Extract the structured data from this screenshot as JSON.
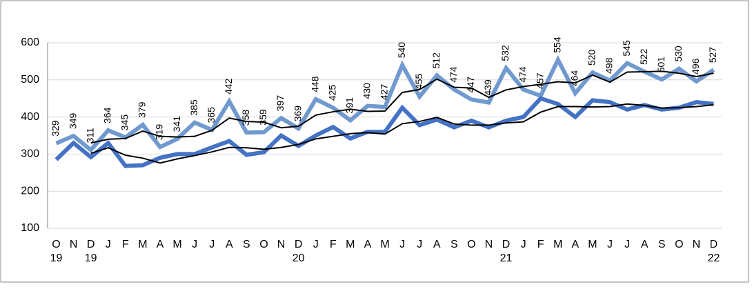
{
  "chart_data": {
    "type": "line",
    "categories": [
      "O",
      "N",
      "D",
      "J",
      "F",
      "M",
      "A",
      "M",
      "J",
      "J",
      "A",
      "S",
      "O",
      "N",
      "D",
      "J",
      "F",
      "M",
      "A",
      "M",
      "J",
      "J",
      "A",
      "S",
      "O",
      "N",
      "D",
      "J",
      "F",
      "M",
      "A",
      "M",
      "J",
      "J",
      "A",
      "S",
      "O",
      "N",
      "D"
    ],
    "category_years": [
      "19",
      null,
      "19",
      null,
      null,
      null,
      null,
      null,
      null,
      null,
      null,
      null,
      null,
      null,
      "20",
      null,
      null,
      null,
      null,
      null,
      null,
      null,
      null,
      null,
      null,
      null,
      "21",
      null,
      null,
      null,
      null,
      null,
      null,
      null,
      null,
      null,
      null,
      null,
      "22"
    ],
    "ylim": [
      100,
      600
    ],
    "yticks": [
      100,
      200,
      300,
      400,
      500,
      600
    ],
    "grid": true,
    "series": [
      {
        "color": "#7099cf",
        "width": 6,
        "data_labels": true,
        "values": [
          329,
          349,
          311,
          364,
          345,
          379,
          319,
          341,
          385,
          365,
          442,
          358,
          359,
          397,
          369,
          448,
          425,
          391,
          430,
          427,
          540,
          455,
          512,
          474,
          447,
          439,
          532,
          474,
          457,
          554,
          464,
          520,
          498,
          545,
          522,
          501,
          530,
          496,
          527
        ]
      },
      {
        "color": "#4472c4",
        "width": 6,
        "data_labels": false,
        "values": [
          285,
          330,
          292,
          330,
          268,
          270,
          290,
          300,
          300,
          318,
          335,
          298,
          305,
          350,
          322,
          350,
          373,
          342,
          360,
          360,
          425,
          378,
          393,
          372,
          390,
          372,
          390,
          400,
          450,
          435,
          400,
          445,
          440,
          420,
          432,
          420,
          425,
          440,
          435
        ]
      },
      {
        "color": "#000000",
        "width": 2,
        "data_labels": false,
        "values": [
          null,
          null,
          330,
          340,
          342,
          362,
          348,
          346,
          348,
          364,
          397,
          388,
          386,
          371,
          375,
          405,
          414,
          421,
          415,
          416,
          466,
          474,
          502,
          480,
          478,
          453,
          473,
          482,
          488,
          495,
          492,
          513,
          494,
          521,
          522,
          523,
          518,
          509,
          518
        ]
      },
      {
        "color": "#000000",
        "width": 2,
        "data_labels": false,
        "values": [
          null,
          null,
          302,
          317,
          297,
          289,
          276,
          287,
          296,
          306,
          318,
          317,
          313,
          318,
          326,
          341,
          348,
          355,
          358,
          354,
          382,
          388,
          399,
          381,
          378,
          378,
          384,
          387,
          413,
          428,
          428,
          427,
          428,
          435,
          431,
          424,
          425,
          428,
          433
        ]
      }
    ]
  }
}
